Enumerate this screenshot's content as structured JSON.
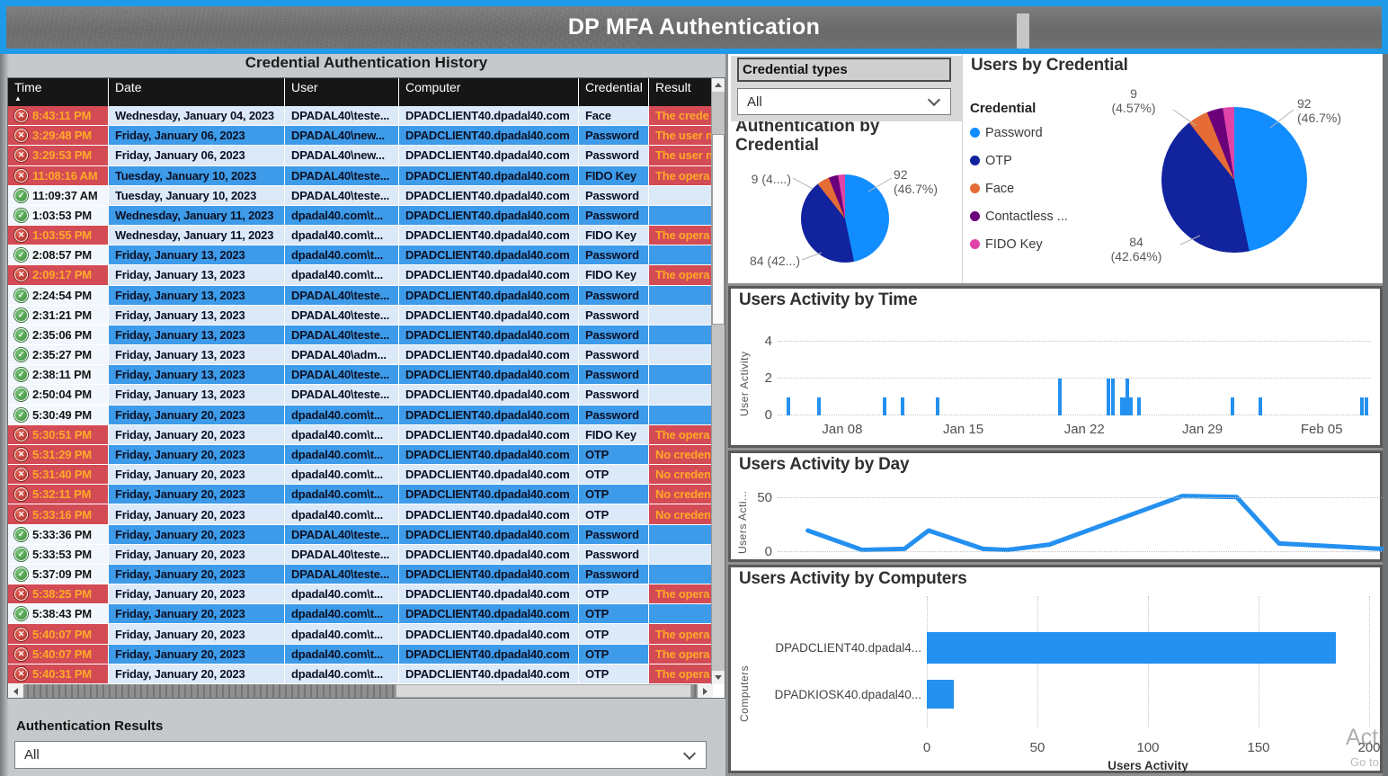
{
  "title_bar": {
    "title": "DP MFA Authentication"
  },
  "history": {
    "panel_title": "Credential Authentication History",
    "columns": [
      "Time",
      "Date",
      "User",
      "Computer",
      "Credential",
      "Result"
    ],
    "sort_arrow": "▲",
    "icons": {
      "fail_glyph": "✕",
      "ok_glyph": "✓"
    },
    "rows": [
      {
        "status": "fail",
        "time": "8:43:11 PM",
        "date": "Wednesday, January 04, 2023",
        "user": "DPADAL40\\teste...",
        "computer": "DPADCLIENT40.dpadal40.com",
        "credential": "Face",
        "result": "The crede"
      },
      {
        "status": "fail",
        "time": "3:29:48 PM",
        "date": "Friday, January 06, 2023",
        "user": "DPADAL40\\new...",
        "computer": "DPADCLIENT40.dpadal40.com",
        "credential": "Password",
        "result": "The user n"
      },
      {
        "status": "fail",
        "time": "3:29:53 PM",
        "date": "Friday, January 06, 2023",
        "user": "DPADAL40\\new...",
        "computer": "DPADCLIENT40.dpadal40.com",
        "credential": "Password",
        "result": "The user n"
      },
      {
        "status": "fail",
        "time": "11:08:16 AM",
        "date": "Tuesday, January 10, 2023",
        "user": "DPADAL40\\teste...",
        "computer": "DPADCLIENT40.dpadal40.com",
        "credential": "FIDO Key",
        "result": "The opera"
      },
      {
        "status": "ok",
        "time": "11:09:37 AM",
        "date": "Tuesday, January 10, 2023",
        "user": "DPADAL40\\teste...",
        "computer": "DPADCLIENT40.dpadal40.com",
        "credential": "Password",
        "result": ""
      },
      {
        "status": "ok",
        "time": "1:03:53 PM",
        "date": "Wednesday, January 11, 2023",
        "user": "dpadal40.com\\t...",
        "computer": "DPADCLIENT40.dpadal40.com",
        "credential": "Password",
        "result": ""
      },
      {
        "status": "fail",
        "time": "1:03:55 PM",
        "date": "Wednesday, January 11, 2023",
        "user": "dpadal40.com\\t...",
        "computer": "DPADCLIENT40.dpadal40.com",
        "credential": "FIDO Key",
        "result": "The opera"
      },
      {
        "status": "ok",
        "time": "2:08:57 PM",
        "date": "Friday, January 13, 2023",
        "user": "dpadal40.com\\t...",
        "computer": "DPADCLIENT40.dpadal40.com",
        "credential": "Password",
        "result": ""
      },
      {
        "status": "fail",
        "time": "2:09:17 PM",
        "date": "Friday, January 13, 2023",
        "user": "dpadal40.com\\t...",
        "computer": "DPADCLIENT40.dpadal40.com",
        "credential": "FIDO Key",
        "result": "The opera"
      },
      {
        "status": "ok",
        "time": "2:24:54 PM",
        "date": "Friday, January 13, 2023",
        "user": "DPADAL40\\teste...",
        "computer": "DPADCLIENT40.dpadal40.com",
        "credential": "Password",
        "result": ""
      },
      {
        "status": "ok",
        "time": "2:31:21 PM",
        "date": "Friday, January 13, 2023",
        "user": "DPADAL40\\teste...",
        "computer": "DPADCLIENT40.dpadal40.com",
        "credential": "Password",
        "result": ""
      },
      {
        "status": "ok",
        "time": "2:35:06 PM",
        "date": "Friday, January 13, 2023",
        "user": "DPADAL40\\teste...",
        "computer": "DPADCLIENT40.dpadal40.com",
        "credential": "Password",
        "result": ""
      },
      {
        "status": "ok",
        "time": "2:35:27 PM",
        "date": "Friday, January 13, 2023",
        "user": "DPADAL40\\adm...",
        "computer": "DPADCLIENT40.dpadal40.com",
        "credential": "Password",
        "result": ""
      },
      {
        "status": "ok",
        "time": "2:38:11 PM",
        "date": "Friday, January 13, 2023",
        "user": "DPADAL40\\teste...",
        "computer": "DPADCLIENT40.dpadal40.com",
        "credential": "Password",
        "result": ""
      },
      {
        "status": "ok",
        "time": "2:50:04 PM",
        "date": "Friday, January 13, 2023",
        "user": "DPADAL40\\teste...",
        "computer": "DPADCLIENT40.dpadal40.com",
        "credential": "Password",
        "result": ""
      },
      {
        "status": "ok",
        "time": "5:30:49 PM",
        "date": "Friday, January 20, 2023",
        "user": "dpadal40.com\\t...",
        "computer": "DPADCLIENT40.dpadal40.com",
        "credential": "Password",
        "result": ""
      },
      {
        "status": "fail",
        "time": "5:30:51 PM",
        "date": "Friday, January 20, 2023",
        "user": "dpadal40.com\\t...",
        "computer": "DPADCLIENT40.dpadal40.com",
        "credential": "FIDO Key",
        "result": "The opera"
      },
      {
        "status": "fail",
        "time": "5:31:29 PM",
        "date": "Friday, January 20, 2023",
        "user": "dpadal40.com\\t...",
        "computer": "DPADCLIENT40.dpadal40.com",
        "credential": "OTP",
        "result": "No creden"
      },
      {
        "status": "fail",
        "time": "5:31:40 PM",
        "date": "Friday, January 20, 2023",
        "user": "dpadal40.com\\t...",
        "computer": "DPADCLIENT40.dpadal40.com",
        "credential": "OTP",
        "result": "No creden"
      },
      {
        "status": "fail",
        "time": "5:32:11 PM",
        "date": "Friday, January 20, 2023",
        "user": "dpadal40.com\\t...",
        "computer": "DPADCLIENT40.dpadal40.com",
        "credential": "OTP",
        "result": "No creden"
      },
      {
        "status": "fail",
        "time": "5:33:16 PM",
        "date": "Friday, January 20, 2023",
        "user": "dpadal40.com\\t...",
        "computer": "DPADCLIENT40.dpadal40.com",
        "credential": "OTP",
        "result": "No creden"
      },
      {
        "status": "ok",
        "time": "5:33:36 PM",
        "date": "Friday, January 20, 2023",
        "user": "DPADAL40\\teste...",
        "computer": "DPADCLIENT40.dpadal40.com",
        "credential": "Password",
        "result": ""
      },
      {
        "status": "ok",
        "time": "5:33:53 PM",
        "date": "Friday, January 20, 2023",
        "user": "DPADAL40\\teste...",
        "computer": "DPADCLIENT40.dpadal40.com",
        "credential": "Password",
        "result": ""
      },
      {
        "status": "ok",
        "time": "5:37:09 PM",
        "date": "Friday, January 20, 2023",
        "user": "DPADAL40\\teste...",
        "computer": "DPADCLIENT40.dpadal40.com",
        "credential": "Password",
        "result": ""
      },
      {
        "status": "fail",
        "time": "5:38:25 PM",
        "date": "Friday, January 20, 2023",
        "user": "dpadal40.com\\t...",
        "computer": "DPADCLIENT40.dpadal40.com",
        "credential": "OTP",
        "result": "The opera"
      },
      {
        "status": "ok",
        "time": "5:38:43 PM",
        "date": "Friday, January 20, 2023",
        "user": "dpadal40.com\\t...",
        "computer": "DPADCLIENT40.dpadal40.com",
        "credential": "OTP",
        "result": ""
      },
      {
        "status": "fail",
        "time": "5:40:07 PM",
        "date": "Friday, January 20, 2023",
        "user": "dpadal40.com\\t...",
        "computer": "DPADCLIENT40.dpadal40.com",
        "credential": "OTP",
        "result": "The opera"
      },
      {
        "status": "fail",
        "time": "5:40:07 PM",
        "date": "Friday, January 20, 2023",
        "user": "dpadal40.com\\t...",
        "computer": "DPADCLIENT40.dpadal40.com",
        "credential": "OTP",
        "result": "The opera"
      },
      {
        "status": "fail",
        "time": "5:40:31 PM",
        "date": "Friday, January 20, 2023",
        "user": "dpadal40.com\\t...",
        "computer": "DPADCLIENT40.dpadal40.com",
        "credential": "OTP",
        "result": "The opera"
      }
    ]
  },
  "auth_results": {
    "label": "Authentication Results",
    "value": "All"
  },
  "credential_types": {
    "label": "Credential types",
    "value": "All"
  },
  "watermark": {
    "line1": "Activ",
    "line2": "Go to"
  },
  "chart_data": [
    {
      "type": "pie",
      "title": "Authentication by Credential",
      "title_lines": [
        "Authentication by",
        "Credential"
      ],
      "labels": [
        "Password",
        "OTP",
        "Face",
        "Contactless ...",
        "FIDO Key"
      ],
      "values": [
        92,
        84,
        9,
        7,
        5
      ],
      "percents": [
        46.7,
        42.64,
        4.57,
        3.55,
        2.54
      ],
      "colors": [
        "#118DFF",
        "#12239E",
        "#E66C37",
        "#6B007B",
        "#E044A7"
      ],
      "callout_left": "9 (4....)",
      "callout_right": [
        "92",
        "(46.7%)"
      ],
      "callout_bottom": "84 (42...)"
    },
    {
      "type": "pie",
      "title": "Users by Credential",
      "legend_title": "Credential",
      "labels": [
        "Password",
        "OTP",
        "Face",
        "Contactless ...",
        "FIDO Key"
      ],
      "values": [
        92,
        84,
        9,
        7,
        5
      ],
      "percents": [
        46.7,
        42.64,
        4.57,
        3.55,
        2.54
      ],
      "colors": [
        "#118DFF",
        "#12239E",
        "#E66C37",
        "#6B007B",
        "#E044A7"
      ],
      "callout_left": [
        "9",
        "(4.57%)"
      ],
      "callout_right": [
        "92",
        "(46.7%)"
      ],
      "callout_bottom": [
        "84",
        "(42.64%)"
      ]
    },
    {
      "type": "bar",
      "title": "Users Activity by Time",
      "ylabel": "User Activity",
      "yticks": [
        0,
        2,
        4
      ],
      "ylim": [
        0,
        4
      ],
      "color": "#2490EF",
      "xticks": [
        {
          "label": "Jan 08",
          "f": 0.109
        },
        {
          "label": "Jan 15",
          "f": 0.313
        },
        {
          "label": "Jan 22",
          "f": 0.517
        },
        {
          "label": "Jan 29",
          "f": 0.716
        },
        {
          "label": "Feb 05",
          "f": 0.917
        }
      ],
      "bars": [
        {
          "f": 0.018,
          "h": 1
        },
        {
          "f": 0.069,
          "h": 1
        },
        {
          "f": 0.18,
          "h": 1
        },
        {
          "f": 0.211,
          "h": 1
        },
        {
          "f": 0.269,
          "h": 1
        },
        {
          "f": 0.476,
          "h": 2
        },
        {
          "f": 0.557,
          "h": 2
        },
        {
          "f": 0.565,
          "h": 2
        },
        {
          "f": 0.58,
          "h": 1
        },
        {
          "f": 0.586,
          "h": 1
        },
        {
          "f": 0.59,
          "h": 2
        },
        {
          "f": 0.596,
          "h": 1
        },
        {
          "f": 0.609,
          "h": 1
        },
        {
          "f": 0.766,
          "h": 1
        },
        {
          "f": 0.814,
          "h": 1
        },
        {
          "f": 0.985,
          "h": 1
        },
        {
          "f": 0.992,
          "h": 1
        }
      ]
    },
    {
      "type": "line",
      "title": "Users Activity by Day",
      "ylabel": "Users Acti...",
      "yticks": [
        0,
        50
      ],
      "ylim": [
        0,
        55
      ],
      "color": "#2490EF",
      "points": [
        [
          0.05,
          20
        ],
        [
          0.14,
          2
        ],
        [
          0.21,
          3
        ],
        [
          0.25,
          20
        ],
        [
          0.34,
          3
        ],
        [
          0.38,
          2
        ],
        [
          0.45,
          7
        ],
        [
          0.67,
          52
        ],
        [
          0.76,
          51
        ],
        [
          0.83,
          8
        ],
        [
          1.0,
          3
        ]
      ]
    },
    {
      "type": "bar-horizontal",
      "title": "Users Activity by Computers",
      "ylabel": "Computers",
      "xlabel": "Users Activity",
      "categories": [
        "DPADCLIENT40.dpadal4...",
        "DPADKIOSK40.dpadal40..."
      ],
      "values": [
        185,
        12
      ],
      "xticks": [
        0,
        50,
        100,
        150,
        200
      ],
      "xlim": [
        0,
        200
      ],
      "color": "#2490EF"
    }
  ]
}
